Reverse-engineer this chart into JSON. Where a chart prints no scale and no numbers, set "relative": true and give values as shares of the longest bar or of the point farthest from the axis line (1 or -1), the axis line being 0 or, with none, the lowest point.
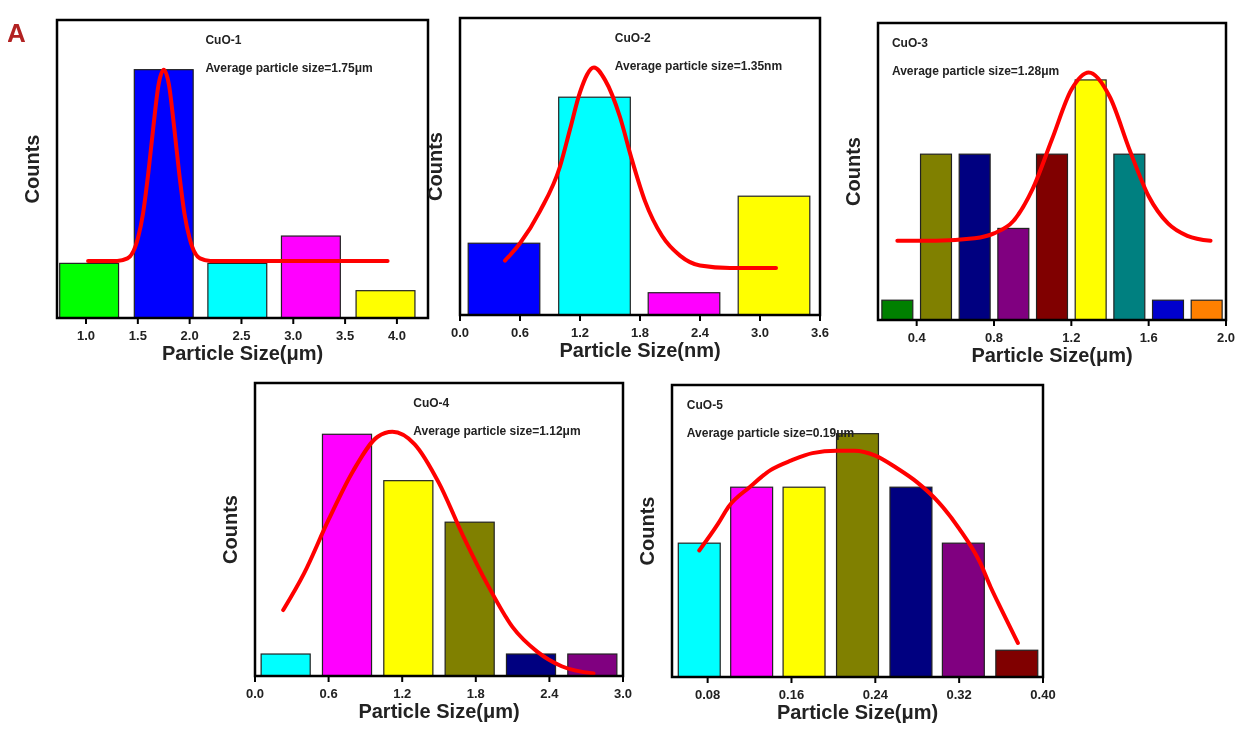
{
  "chart_data": [
    {
      "type": "bar",
      "title": "CuO-1",
      "subtitle": "A",
      "annotations": [
        "Average particle size=1.75μm"
      ],
      "xlabel": "Particle Size(μm)",
      "ylabel": "Counts",
      "relative": true,
      "tick_labels": "x",
      "xlim": [
        0.72,
        4.3
      ],
      "xticks": [
        {
          "value": 1,
          "label": "1.0"
        },
        1.5,
        {
          "value": 2,
          "label": "2.0"
        },
        2.5,
        {
          "value": 3,
          "label": "3.0"
        },
        3.5,
        {
          "value": 4,
          "label": "4.0"
        }
      ],
      "series": [
        {
          "type": "bar",
          "x": [
            1.03,
            1.75,
            2.46,
            3.17,
            3.89
          ],
          "values": [
            0.22,
            1.0,
            0.22,
            0.33,
            0.11
          ],
          "colors": [
            "#00ff00",
            "#0000ff",
            "#00ffff",
            "#ff00ff",
            "#ffff00"
          ]
        },
        {
          "type": "line",
          "color": "#ff0000",
          "x": [
            1.02,
            1.3,
            1.4,
            1.5,
            1.55,
            1.6,
            1.65,
            1.7,
            1.75,
            1.8,
            1.85,
            1.9,
            1.95,
            2.0,
            2.1,
            2.2,
            2.5,
            3.0,
            3.5,
            3.91
          ],
          "values": [
            0.23,
            0.23,
            0.24,
            0.32,
            0.42,
            0.58,
            0.77,
            0.94,
            1.0,
            0.94,
            0.77,
            0.58,
            0.42,
            0.32,
            0.24,
            0.23,
            0.23,
            0.23,
            0.23,
            0.23
          ]
        }
      ]
    },
    {
      "type": "bar",
      "title": "CuO-2",
      "annotations": [
        "Average particle size=1.35nm"
      ],
      "xlabel": "Particle Size(nm)",
      "ylabel": "Counts",
      "relative": true,
      "tick_labels": "x",
      "xlim": [
        0,
        3.6
      ],
      "xticks": [
        {
          "value": 0,
          "label": "0.0"
        },
        0.6,
        1.2,
        1.8,
        2.4,
        {
          "value": 3,
          "label": "3.0"
        },
        3.6
      ],
      "series": [
        {
          "type": "bar",
          "x": [
            0.44,
            1.345,
            2.24,
            3.14
          ],
          "values": [
            0.29,
            0.88,
            0.09,
            0.48
          ],
          "colors": [
            "#0000ff",
            "#00ffff",
            "#ff00ff",
            "#ffff00"
          ]
        },
        {
          "type": "line",
          "color": "#ff0000",
          "x": [
            0.45,
            0.6,
            0.8,
            1.0,
            1.1,
            1.2,
            1.34,
            1.45,
            1.6,
            1.71,
            1.85,
            2.02,
            2.2,
            2.4,
            2.7,
            3.16
          ],
          "values": [
            0.22,
            0.29,
            0.42,
            0.6,
            0.75,
            0.9,
            1.0,
            0.95,
            0.8,
            0.64,
            0.46,
            0.32,
            0.24,
            0.2,
            0.19,
            0.19
          ]
        }
      ]
    },
    {
      "type": "bar",
      "title": "CuO-3",
      "annotations": [
        "Average particle size=1.28μm"
      ],
      "xlabel": "Particle Size(μm)",
      "ylabel": "Counts",
      "relative": true,
      "tick_labels": "x",
      "xlim": [
        0.2,
        2.0
      ],
      "xticks": [
        0.4,
        0.8,
        1.2,
        1.6,
        {
          "value": 2,
          "label": "2.0"
        }
      ],
      "series": [
        {
          "type": "bar",
          "x": [
            0.3,
            0.5,
            0.7,
            0.9,
            1.1,
            1.3,
            1.5,
            1.7,
            1.9
          ],
          "values": [
            0.08,
            0.67,
            0.67,
            0.37,
            0.67,
            0.97,
            0.67,
            0.08,
            0.08
          ],
          "colors": [
            "#008000",
            "#808000",
            "#000080",
            "#800080",
            "#800000",
            "#ffff00",
            "#008080",
            "#0000cd",
            "#ff8000"
          ]
        },
        {
          "type": "line",
          "color": "#ff0000",
          "x": [
            0.3,
            0.5,
            0.7,
            0.8,
            0.9,
            1.0,
            1.1,
            1.2,
            1.29,
            1.4,
            1.5,
            1.6,
            1.7,
            1.8,
            1.92
          ],
          "values": [
            0.32,
            0.32,
            0.33,
            0.35,
            0.4,
            0.53,
            0.73,
            0.93,
            1.0,
            0.9,
            0.69,
            0.5,
            0.39,
            0.34,
            0.32
          ]
        }
      ]
    },
    {
      "type": "bar",
      "title": "CuO-4",
      "annotations": [
        "Average particle size=1.12μm"
      ],
      "xlabel": "Particle Size(μm)",
      "ylabel": "Counts",
      "relative": true,
      "tick_labels": "x",
      "xlim": [
        0,
        3.0
      ],
      "xticks": [
        {
          "value": 0,
          "label": "0.0"
        },
        0.6,
        1.2,
        1.8,
        2.4,
        {
          "value": 3,
          "label": "3.0"
        }
      ],
      "series": [
        {
          "type": "bar",
          "x": [
            0.25,
            0.75,
            1.25,
            1.75,
            2.25,
            2.75
          ],
          "values": [
            0.09,
            0.99,
            0.8,
            0.63,
            0.09,
            0.09
          ],
          "colors": [
            "#00ffff",
            "#ff00ff",
            "#ffff00",
            "#808000",
            "#000080",
            "#800080"
          ]
        },
        {
          "type": "line",
          "color": "#ff0000",
          "x": [
            0.23,
            0.4,
            0.6,
            0.8,
            1.0,
            1.12,
            1.3,
            1.5,
            1.7,
            1.9,
            2.1,
            2.3,
            2.5,
            2.76
          ],
          "values": [
            0.27,
            0.42,
            0.64,
            0.84,
            0.98,
            1.0,
            0.95,
            0.79,
            0.57,
            0.37,
            0.2,
            0.1,
            0.04,
            0.01
          ]
        }
      ]
    },
    {
      "type": "bar",
      "title": "CuO-5",
      "annotations": [
        "Average particle size=0.19μm"
      ],
      "xlabel": "Particle Size(μm)",
      "ylabel": "Counts",
      "relative": true,
      "tick_labels": "x",
      "xlim": [
        0.046,
        0.4
      ],
      "xticks": [
        0.08,
        0.16,
        0.24,
        0.32,
        {
          "value": 0.4,
          "label": "0.40"
        }
      ],
      "series": [
        {
          "type": "bar",
          "x": [
            0.072,
            0.122,
            0.172,
            0.223,
            0.274,
            0.324,
            0.375
          ],
          "values": [
            0.55,
            0.78,
            0.78,
            1.0,
            0.78,
            0.55,
            0.11
          ],
          "colors": [
            "#00ffff",
            "#ff00ff",
            "#ffff00",
            "#808000",
            "#000080",
            "#800080",
            "#800000"
          ]
        },
        {
          "type": "line",
          "color": "#ff0000",
          "x": [
            0.072,
            0.09,
            0.1,
            0.12,
            0.14,
            0.16,
            0.18,
            0.203,
            0.22,
            0.24,
            0.26,
            0.28,
            0.3,
            0.32,
            0.34,
            0.35,
            0.36,
            0.376
          ],
          "values": [
            0.52,
            0.63,
            0.7,
            0.78,
            0.85,
            0.89,
            0.92,
            0.93,
            0.93,
            0.91,
            0.86,
            0.8,
            0.72,
            0.61,
            0.47,
            0.37,
            0.28,
            0.14
          ]
        }
      ]
    }
  ]
}
